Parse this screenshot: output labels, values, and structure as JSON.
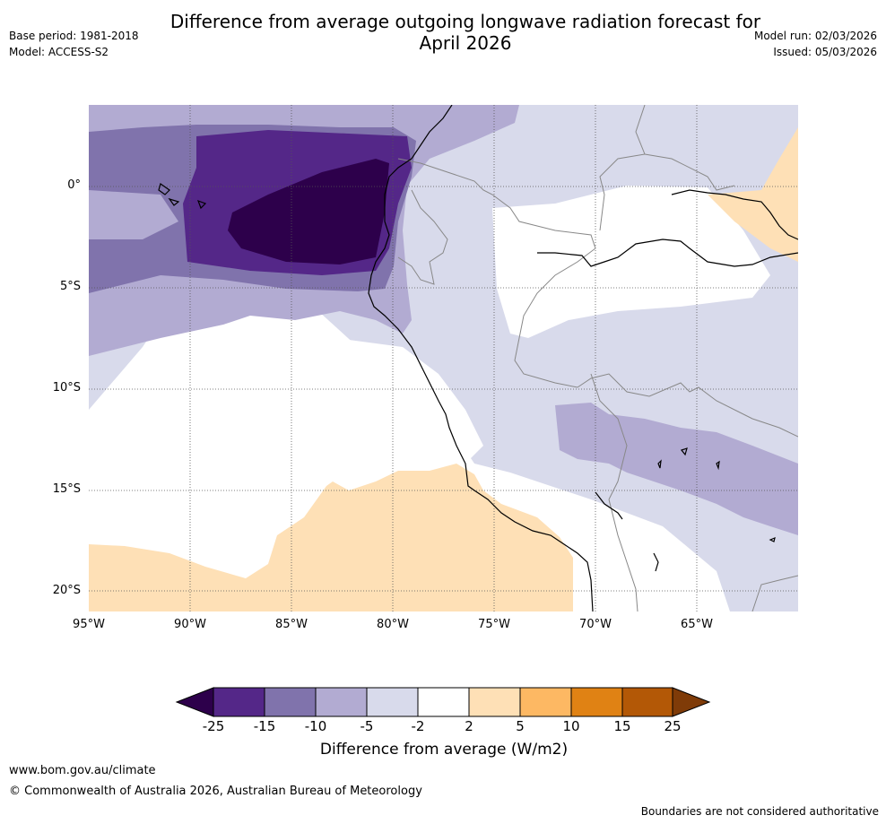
{
  "header": {
    "title_line1": "Difference from average outgoing longwave radiation forecast for",
    "title_line2": "April 2026",
    "base_period": "Base period: 1981-2018",
    "model": "Model: ACCESS-S2",
    "model_run": "Model run: 02/03/2026",
    "issued": "Issued: 05/03/2026"
  },
  "map": {
    "lat_labels": [
      "0°",
      "5°S",
      "10°S",
      "15°S",
      "20°S"
    ],
    "lon_labels": [
      "95°W",
      "90°W",
      "85°W",
      "80°W",
      "75°W",
      "70°W",
      "65°W"
    ],
    "colors": {
      "lt_minus25": "#2d004b",
      "m25_m15": "#542788",
      "m15_m10": "#8073ac",
      "m10_m5": "#b2abd2",
      "m5_m2": "#d8daeb",
      "m2_2": "#ffffff",
      "p2_5": "#fee0b6",
      "p5_10": "#fdb863",
      "p10_15": "#e08214",
      "p15_25": "#b35806",
      "gt_25": "#7f3b08"
    }
  },
  "colorbar": {
    "ticks": [
      "-25",
      "-15",
      "-10",
      "-5",
      "-2",
      "2",
      "5",
      "10",
      "15",
      "25"
    ],
    "label": "Difference from average (W/m2)",
    "colors": [
      "#542788",
      "#8073ac",
      "#b2abd2",
      "#d8daeb",
      "#ffffff",
      "#fee0b6",
      "#fdb863",
      "#e08214",
      "#b35806"
    ],
    "low_extend_color": "#2d004b",
    "high_extend_color": "#7f3b08"
  },
  "footer": {
    "website": "www.bom.gov.au/climate",
    "copyright": "© Commonwealth of Australia 2026, Australian Bureau of Meteorology",
    "disclaimer": "Boundaries are not considered authoritative"
  }
}
